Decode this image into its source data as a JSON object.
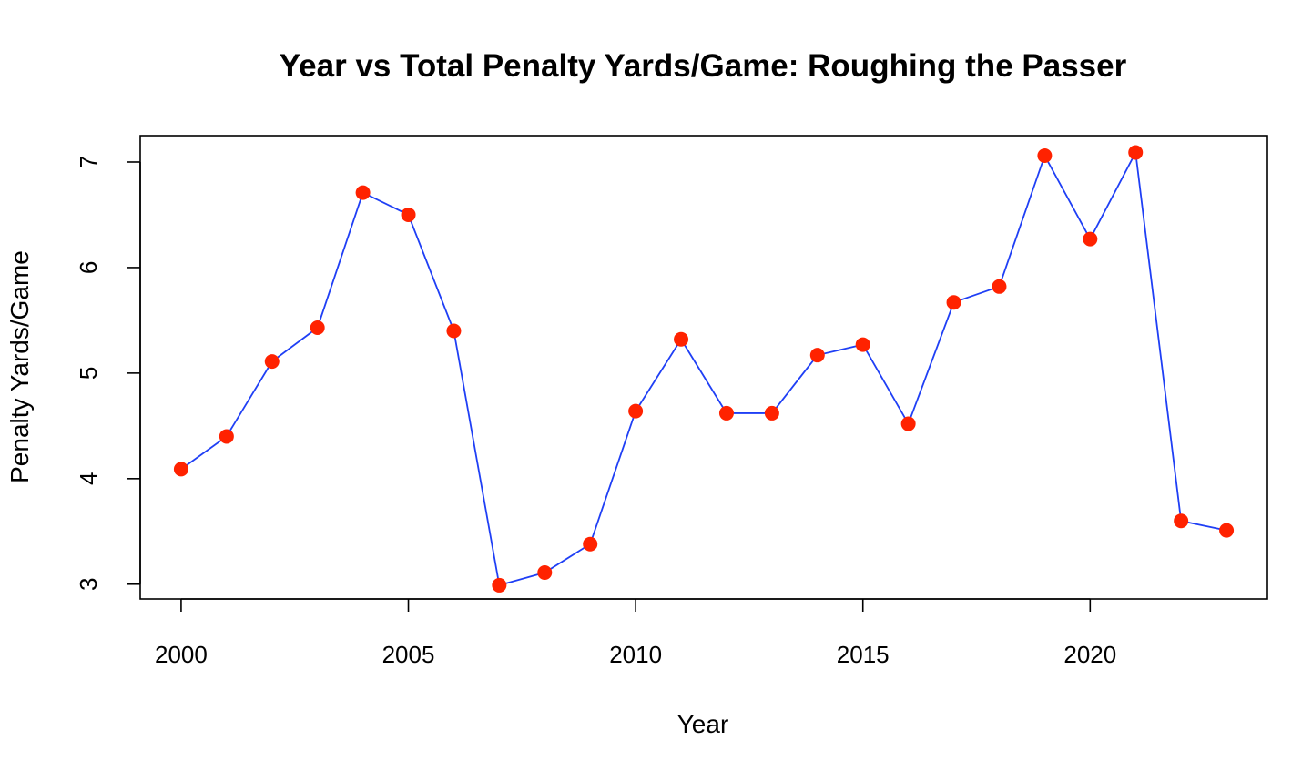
{
  "chart_data": {
    "type": "line",
    "title": "Year vs Total Penalty Yards/Game: Roughing the Passer",
    "xlabel": "Year",
    "ylabel": "Penalty Yards/Game",
    "xlim": [
      1999.1,
      2023.9
    ],
    "ylim": [
      2.86,
      7.25
    ],
    "x_ticks": [
      "2000",
      "2005",
      "2010",
      "2015",
      "2020"
    ],
    "y_ticks": [
      "3",
      "4",
      "5",
      "6",
      "7"
    ],
    "grid": false,
    "legend": "none",
    "series": [
      {
        "x": [
          2000,
          2001,
          2002,
          2003,
          2004,
          2005,
          2006,
          2007,
          2008,
          2009,
          2010,
          2011,
          2012,
          2013,
          2014,
          2015,
          2016,
          2017,
          2018,
          2019,
          2020,
          2021,
          2022,
          2023
        ],
        "values": [
          4.09,
          4.4,
          5.11,
          5.43,
          6.71,
          6.5,
          5.4,
          2.99,
          3.11,
          3.38,
          4.64,
          5.32,
          4.62,
          4.62,
          5.17,
          5.27,
          4.52,
          5.67,
          5.82,
          7.06,
          6.27,
          7.09,
          3.6,
          3.51
        ]
      }
    ],
    "colors": {
      "line": "#1f3ff5",
      "point": "#ff2200",
      "frame": "#000000"
    }
  }
}
